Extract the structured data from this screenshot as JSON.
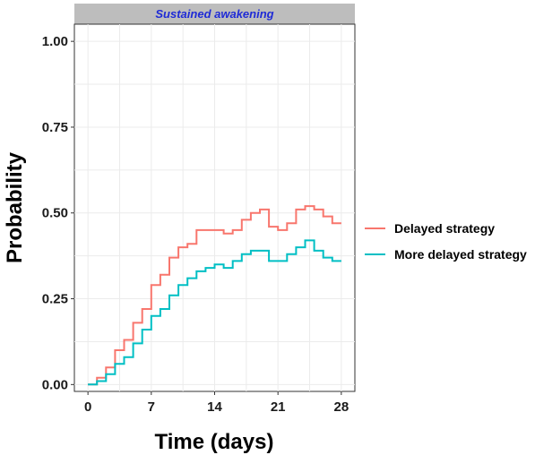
{
  "chart_data": {
    "type": "line",
    "step": true,
    "facet_title": "Sustained awakening",
    "xlabel": "Time (days)",
    "ylabel": "Probability",
    "xlim": [
      -1.5,
      29.5
    ],
    "ylim": [
      -0.02,
      1.05
    ],
    "x_ticks": [
      0,
      7,
      14,
      21,
      28
    ],
    "y_ticks": [
      0.0,
      0.25,
      0.5,
      0.75,
      1.0
    ],
    "y_tick_labels": [
      "0.00",
      "0.25",
      "0.50",
      "0.75",
      "1.00"
    ],
    "grid": true,
    "legend_position": "right",
    "series": [
      {
        "name": "Delayed strategy",
        "color": "#f8766d",
        "x": [
          0,
          1,
          2,
          3,
          4,
          5,
          6,
          7,
          8,
          9,
          10,
          11,
          12,
          13,
          14,
          15,
          16,
          17,
          18,
          19,
          20,
          21,
          22,
          23,
          24,
          25,
          26,
          27,
          28
        ],
        "y": [
          0.0,
          0.02,
          0.05,
          0.1,
          0.13,
          0.18,
          0.22,
          0.29,
          0.32,
          0.37,
          0.4,
          0.41,
          0.45,
          0.45,
          0.45,
          0.44,
          0.45,
          0.48,
          0.5,
          0.51,
          0.46,
          0.45,
          0.47,
          0.51,
          0.52,
          0.51,
          0.49,
          0.47,
          0.47
        ]
      },
      {
        "name": "More delayed strategy",
        "color": "#00bfc4",
        "x": [
          0,
          1,
          2,
          3,
          4,
          5,
          6,
          7,
          8,
          9,
          10,
          11,
          12,
          13,
          14,
          15,
          16,
          17,
          18,
          19,
          20,
          21,
          22,
          23,
          24,
          25,
          26,
          27,
          28
        ],
        "y": [
          0.0,
          0.01,
          0.03,
          0.06,
          0.08,
          0.12,
          0.16,
          0.2,
          0.22,
          0.26,
          0.29,
          0.31,
          0.33,
          0.34,
          0.35,
          0.34,
          0.36,
          0.38,
          0.39,
          0.39,
          0.36,
          0.36,
          0.38,
          0.4,
          0.42,
          0.39,
          0.37,
          0.36,
          0.36
        ]
      }
    ]
  }
}
